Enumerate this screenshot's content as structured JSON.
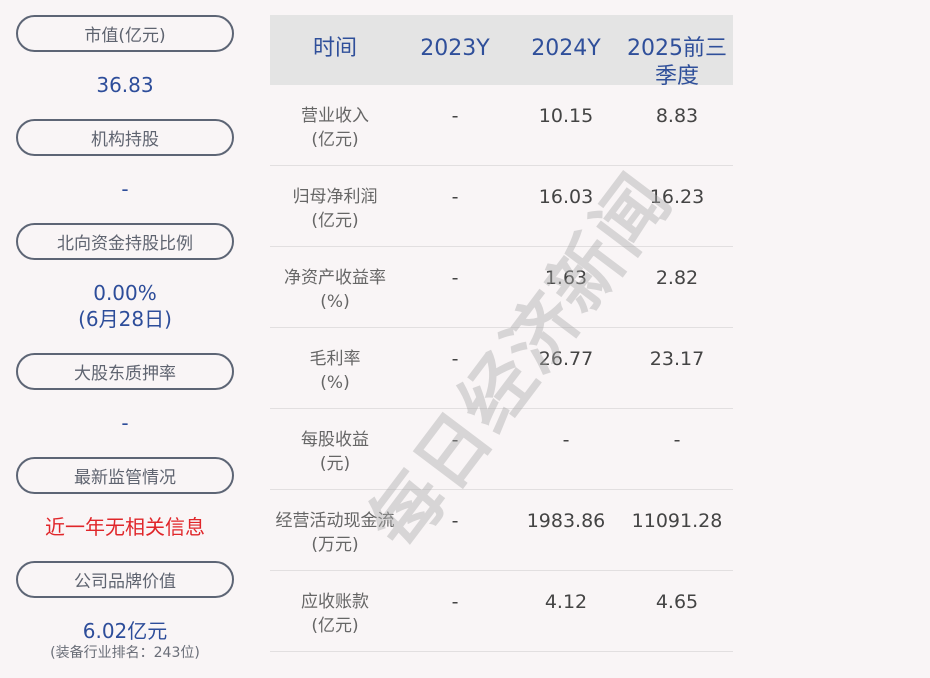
{
  "left_panel": [
    {
      "label": "市值(亿元)",
      "value": "36.83"
    },
    {
      "label": "机构持股",
      "value": "-"
    },
    {
      "label": "北向资金持股比例",
      "value": "0.00%",
      "value2": "(6月28日)"
    },
    {
      "label": "大股东质押率",
      "value": "-"
    },
    {
      "label": "最新监管情况",
      "value": "近一年无相关信息"
    },
    {
      "label": "公司品牌价值",
      "value": "6.02亿元",
      "note": "(装备行业排名：243位)"
    }
  ],
  "table": {
    "headers": [
      "时间",
      "2023Y",
      "2024Y",
      "2025前三季度"
    ],
    "rows": [
      {
        "label": "营业收入",
        "unit": "(亿元)",
        "values": [
          "-",
          "10.15",
          "8.83"
        ]
      },
      {
        "label": "归母净利润",
        "unit": "(亿元)",
        "values": [
          "-",
          "16.03",
          "16.23"
        ]
      },
      {
        "label": "净资产收益率",
        "unit": "(%)",
        "values": [
          "-",
          "1.63",
          "2.82"
        ]
      },
      {
        "label": "毛利率",
        "unit": "(%)",
        "values": [
          "-",
          "26.77",
          "23.17"
        ]
      },
      {
        "label": "每股收益",
        "unit": "(元)",
        "values": [
          "-",
          "-",
          "-"
        ]
      },
      {
        "label": "经营活动现金流",
        "unit": "(万元)",
        "values": [
          "-",
          "1983.86",
          "11091.28"
        ]
      },
      {
        "label": "应收账款",
        "unit": "(亿元)",
        "values": [
          "-",
          "4.12",
          "4.65"
        ]
      }
    ]
  },
  "watermark": "每日经济新闻",
  "colors": {
    "accent": "#2d4d9a",
    "alert": "#e0262a",
    "header_bg": "#e4e4e4",
    "background": "#f9f5f6"
  }
}
